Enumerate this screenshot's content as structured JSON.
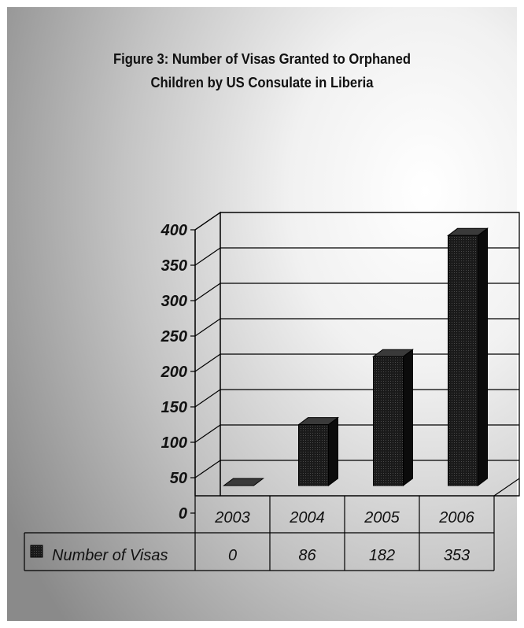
{
  "chart_data": {
    "type": "bar",
    "title": "Figure 3: Number of Visas Granted to Orphaned\nChildren by US Consulate in Liberia",
    "xlabel": "",
    "ylabel": "",
    "categories": [
      "2003",
      "2004",
      "2005",
      "2006"
    ],
    "series": [
      {
        "name": "Number of Visas",
        "values": [
          0,
          86,
          182,
          353
        ]
      }
    ],
    "ylim": [
      0,
      400
    ],
    "yticks": [
      0,
      50,
      100,
      150,
      200,
      250,
      300,
      350,
      400
    ],
    "grid": true,
    "three_d": true,
    "data_table": true,
    "legend": "data-table",
    "colors": {
      "bar": "#111111",
      "floor": "#777777",
      "background_edge": "#8a8a8a",
      "background_center": "#ffffff"
    }
  }
}
